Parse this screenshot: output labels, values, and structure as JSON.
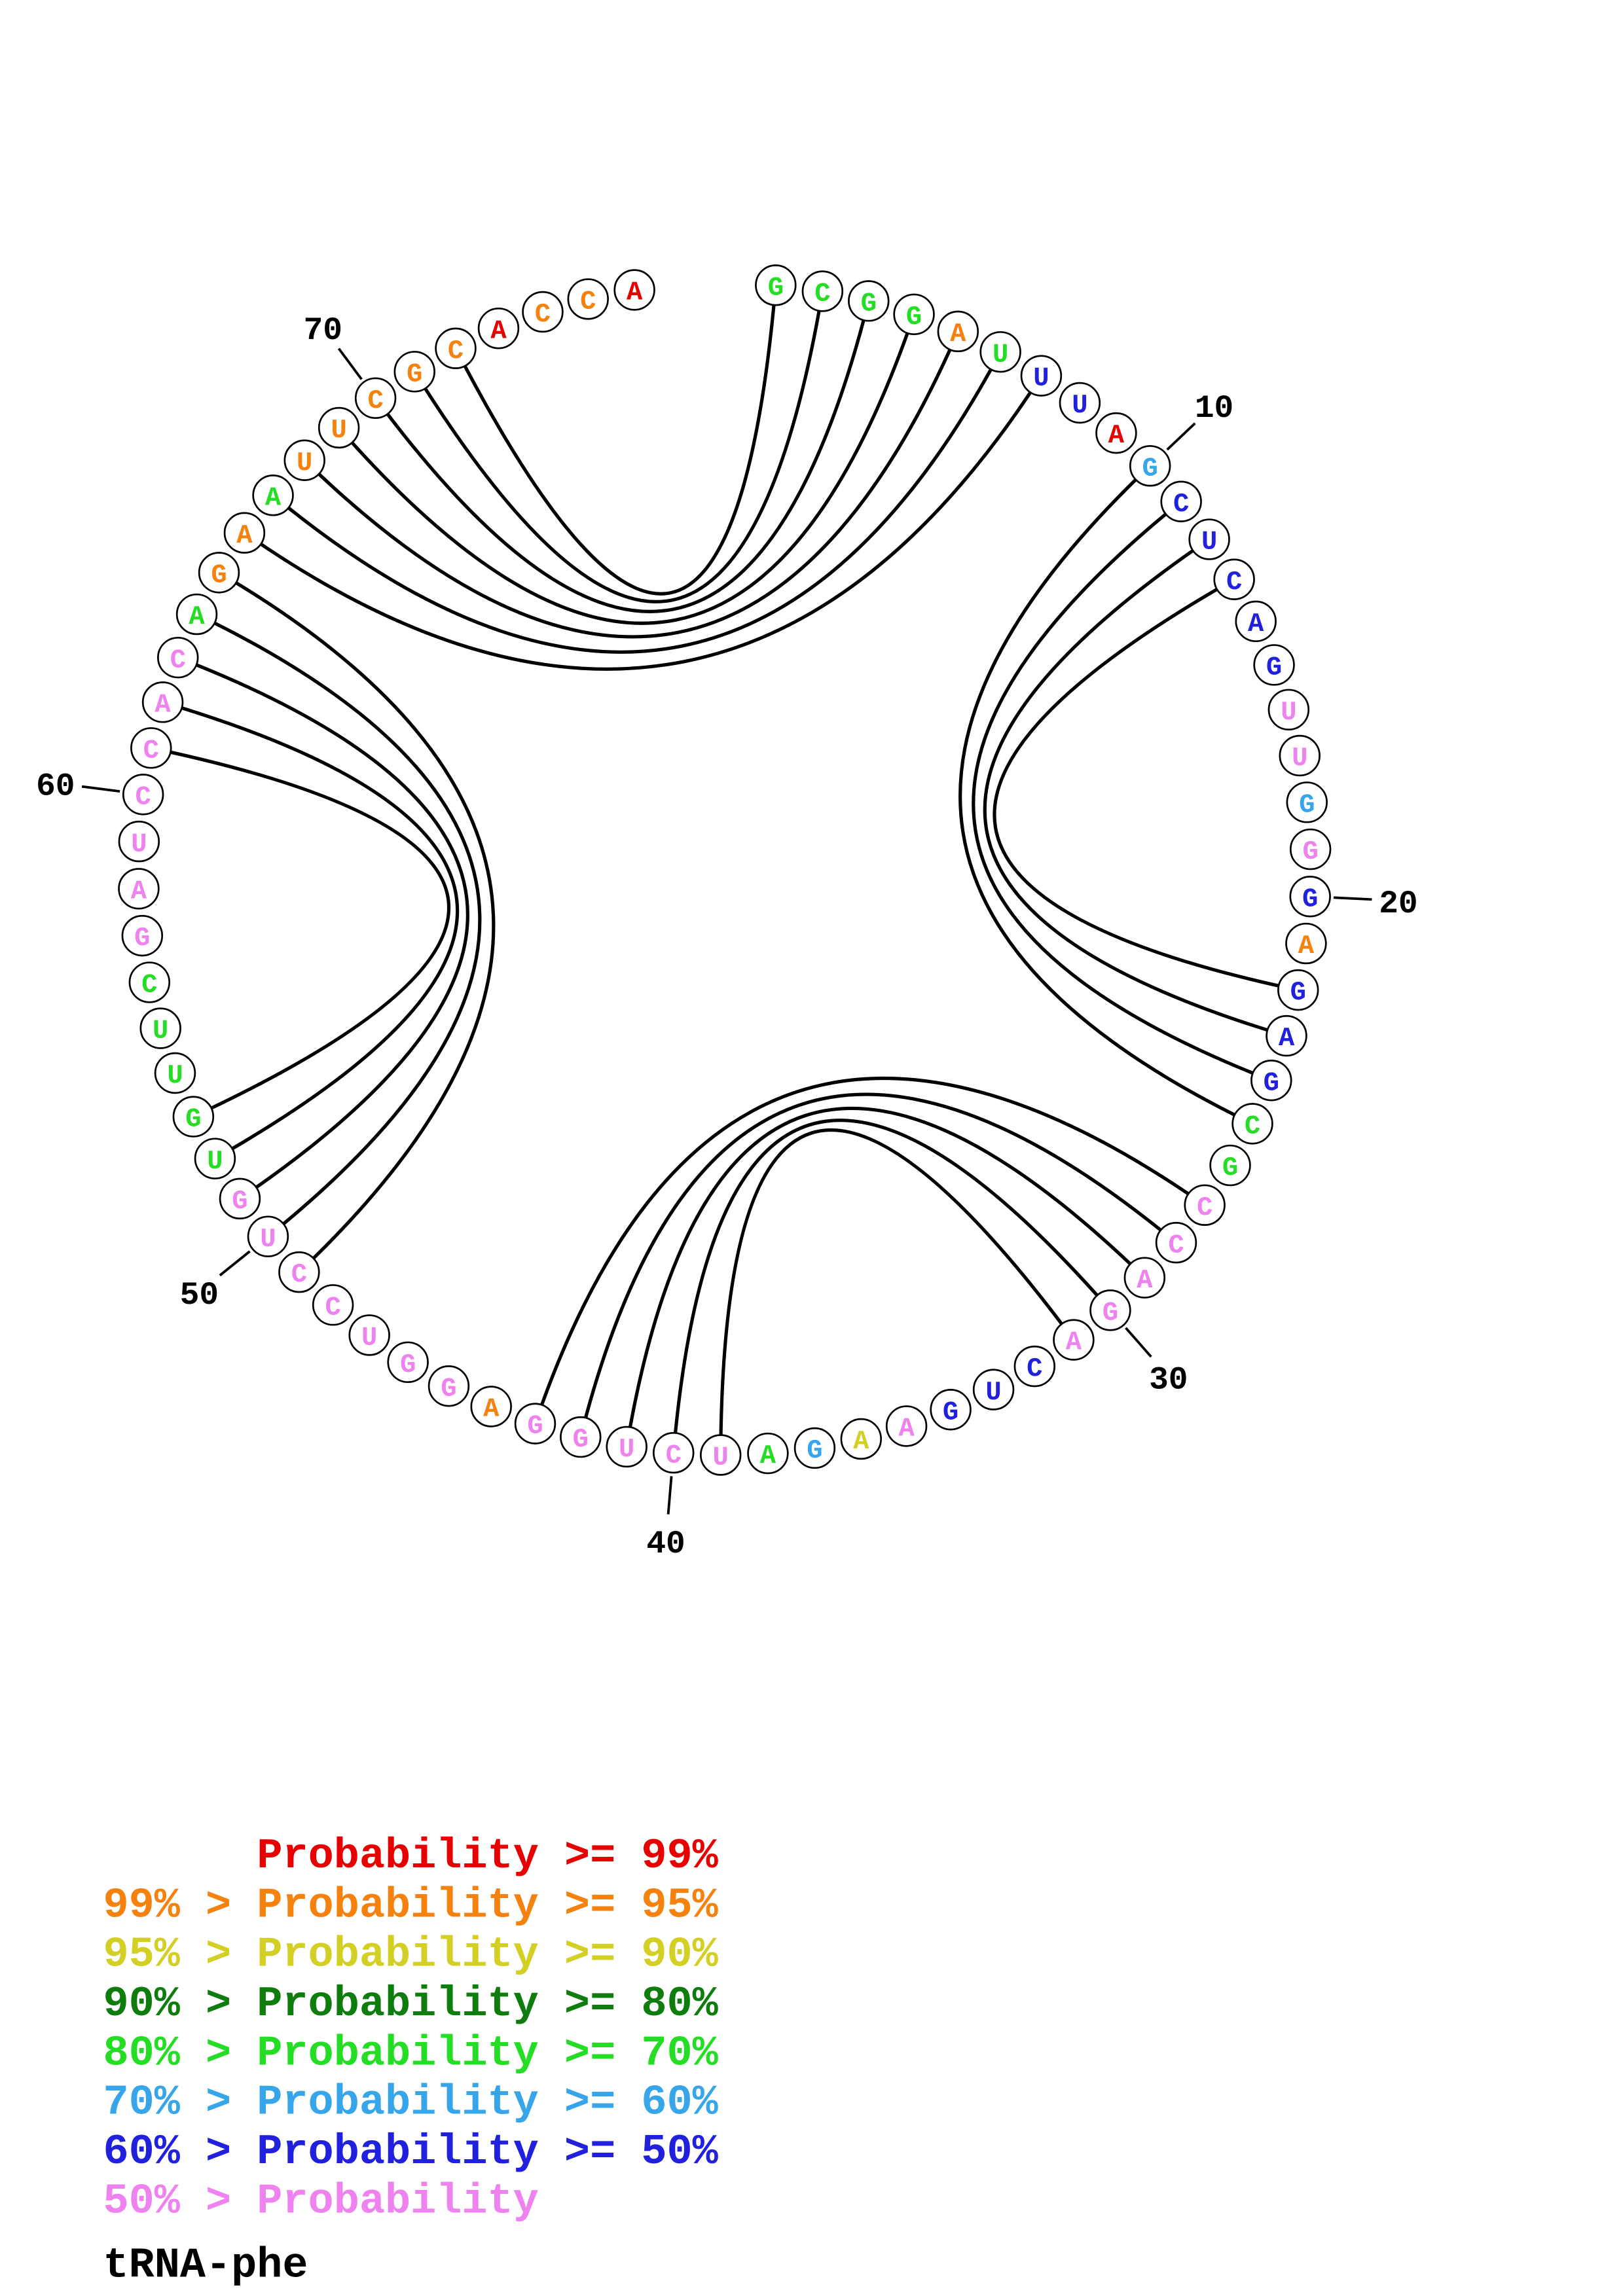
{
  "title": "tRNA-phe",
  "palette": {
    "red": "#e60000",
    "orange": "#f5820f",
    "yellow": "#d3cf25",
    "dark_green": "#0e7d0e",
    "green": "#26dd26",
    "sky_blue": "#36a5ea",
    "blue": "#2121dd",
    "violet": "#ee82ee",
    "stroke": "#000000"
  },
  "legend": [
    {
      "text": "Probability >= 99%",
      "indent": 6,
      "color": "red"
    },
    {
      "text": "99% > Probability >= 95%",
      "indent": 0,
      "color": "orange"
    },
    {
      "text": "95% > Probability >= 90%",
      "indent": 0,
      "color": "yellow"
    },
    {
      "text": "90% > Probability >= 80%",
      "indent": 0,
      "color": "dark_green"
    },
    {
      "text": "80% > Probability >= 70%",
      "indent": 0,
      "color": "green"
    },
    {
      "text": "70% > Probability >= 60%",
      "indent": 0,
      "color": "sky_blue"
    },
    {
      "text": "60% > Probability >= 50%",
      "indent": 0,
      "color": "blue"
    },
    {
      "text": "50% > Probability",
      "indent": 0,
      "color": "violet"
    }
  ],
  "circle_plot": {
    "sequence": "GCGGAUUUAGCUCAGUUGGGAGAGCGCCAGACUGAAGAUCUGGAGGUCCUGUGUUCGAUCCACAGAAUUCGCACCA",
    "colors": [
      "green",
      "green",
      "green",
      "green",
      "orange",
      "green",
      "blue",
      "blue",
      "red",
      "sky_blue",
      "blue",
      "blue",
      "blue",
      "blue",
      "blue",
      "violet",
      "violet",
      "sky_blue",
      "violet",
      "blue",
      "orange",
      "blue",
      "blue",
      "blue",
      "green",
      "green",
      "violet",
      "violet",
      "violet",
      "violet",
      "violet",
      "blue",
      "blue",
      "blue",
      "violet",
      "yellow",
      "sky_blue",
      "green",
      "violet",
      "violet",
      "violet",
      "violet",
      "violet",
      "orange",
      "violet",
      "violet",
      "violet",
      "violet",
      "violet",
      "violet",
      "violet",
      "green",
      "green",
      "green",
      "green",
      "green",
      "violet",
      "violet",
      "violet",
      "violet",
      "violet",
      "violet",
      "violet",
      "green",
      "orange",
      "orange",
      "green",
      "orange",
      "orange",
      "orange",
      "orange",
      "orange",
      "red",
      "orange",
      "orange",
      "red"
    ],
    "pairs": [
      [
        1,
        72
      ],
      [
        2,
        71
      ],
      [
        3,
        70
      ],
      [
        4,
        69
      ],
      [
        5,
        68
      ],
      [
        6,
        67
      ],
      [
        7,
        66
      ],
      [
        10,
        25
      ],
      [
        11,
        24
      ],
      [
        12,
        23
      ],
      [
        13,
        22
      ],
      [
        27,
        43
      ],
      [
        28,
        42
      ],
      [
        29,
        41
      ],
      [
        30,
        40
      ],
      [
        31,
        39
      ],
      [
        49,
        65
      ],
      [
        50,
        64
      ],
      [
        51,
        63
      ],
      [
        52,
        62
      ],
      [
        53,
        61
      ]
    ],
    "position_labels": [
      10,
      20,
      30,
      40,
      50,
      60,
      70
    ]
  }
}
